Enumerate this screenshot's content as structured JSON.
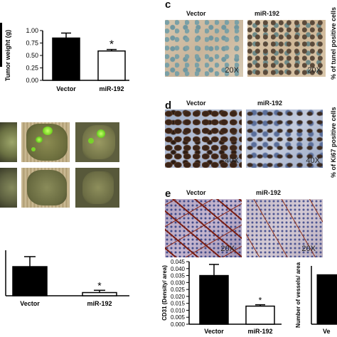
{
  "chart_data": [
    {
      "type": "bar",
      "id": "tumor-weight",
      "categories": [
        "Vector",
        "miR-192"
      ],
      "values": [
        0.85,
        0.59
      ],
      "errors": [
        0.1,
        0.03
      ],
      "ylabel": "Tumor weight (g)",
      "ylim": [
        0,
        1.0
      ],
      "yticks": [
        "0.00",
        "0.25",
        "0.50",
        "0.75",
        "1.00"
      ],
      "significance": [
        "",
        "*"
      ],
      "fill": [
        "#000000",
        "#ffffff"
      ]
    },
    {
      "type": "bar",
      "id": "lung-metastasis",
      "categories": [
        "Vector",
        "miR-192"
      ],
      "values": [
        0.64,
        0.07
      ],
      "errors": [
        0.22,
        0.05
      ],
      "ylim": [
        0,
        1.0
      ],
      "significance": [
        "",
        "*"
      ],
      "fill": [
        "#000000",
        "#ffffff"
      ]
    },
    {
      "type": "bar",
      "id": "cd31-density",
      "categories": [
        "Vector",
        "miR-192"
      ],
      "values": [
        0.035,
        0.013
      ],
      "errors": [
        0.008,
        0.001
      ],
      "ylabel": "CD31 (Density/ area)",
      "ylim": [
        0,
        0.045
      ],
      "yticks": [
        "0.000",
        "0.005",
        "0.010",
        "0.015",
        "0.020",
        "0.025",
        "0.030",
        "0.035",
        "0.040",
        "0.045"
      ],
      "significance": [
        "",
        "*"
      ],
      "fill": [
        "#000000",
        "#ffffff"
      ]
    },
    {
      "type": "bar",
      "id": "vessel-number",
      "categories": [
        "Ve"
      ],
      "values": [
        0.85
      ],
      "ylabel": "Number of vessels/ area",
      "fill": [
        "#000000"
      ]
    }
  ],
  "panels": {
    "c": {
      "letter": "c",
      "vector_label": "Vector",
      "mir_label": "miR-192",
      "magnification": "20X",
      "side_ylabel": "% of tunel positive cells"
    },
    "d": {
      "letter": "d",
      "vector_label": "Vector",
      "mir_label": "miR-192",
      "magnification": "40X",
      "side_ylabel": "% of Ki67 positive cells"
    },
    "e": {
      "letter": "e",
      "vector_label": "Vector",
      "mir_label": "miR-192",
      "magnification": "20X"
    }
  }
}
